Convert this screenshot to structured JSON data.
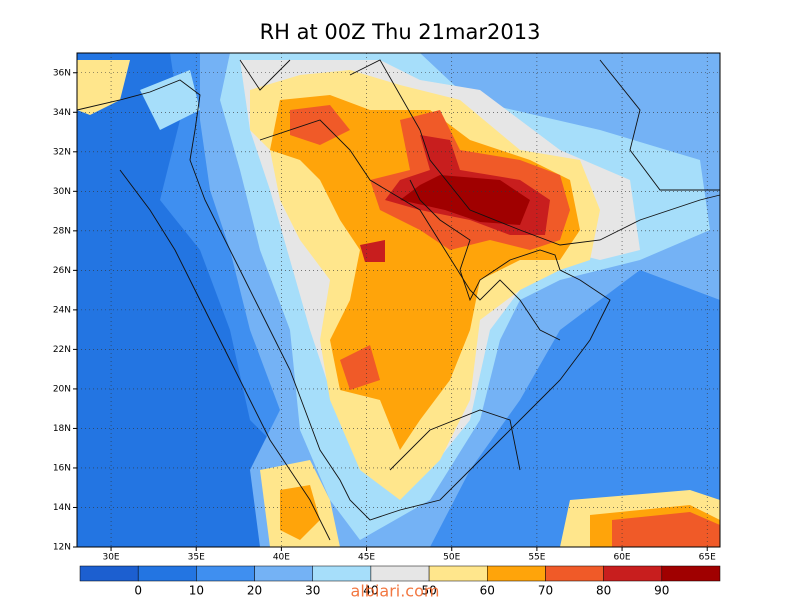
{
  "map": {
    "title": "RH at 00Z Thu 21mar2013",
    "xlim": [
      28,
      65.75
    ],
    "xticks": [
      {
        "value": 30,
        "label": "30E"
      },
      {
        "value": 35,
        "label": "35E"
      },
      {
        "value": 40,
        "label": "40E"
      },
      {
        "value": 45,
        "label": "45E"
      },
      {
        "value": 50,
        "label": "50E"
      },
      {
        "value": 55,
        "label": "55E"
      },
      {
        "value": 60,
        "label": "60E"
      },
      {
        "value": 65,
        "label": "65E"
      }
    ],
    "ylim": [
      12,
      37
    ],
    "yticks": [
      {
        "value": 12,
        "label": "12N"
      },
      {
        "value": 14,
        "label": "14N"
      },
      {
        "value": 16,
        "label": "16N"
      },
      {
        "value": 18,
        "label": "18N"
      },
      {
        "value": 20,
        "label": "20N"
      },
      {
        "value": 22,
        "label": "22N"
      },
      {
        "value": 24,
        "label": "24N"
      },
      {
        "value": 26,
        "label": "26N"
      },
      {
        "value": 28,
        "label": "28N"
      },
      {
        "value": 30,
        "label": "30N"
      },
      {
        "value": 32,
        "label": "32N"
      },
      {
        "value": 34,
        "label": "34N"
      },
      {
        "value": 36,
        "label": "36N"
      }
    ],
    "grid": true,
    "colorbar": {
      "clim": [
        -10,
        100
      ],
      "ticks": [
        0,
        10,
        20,
        30,
        40,
        50,
        60,
        70,
        80,
        90
      ],
      "colors": [
        "#1c5fd0",
        "#2375e2",
        "#3f8ff0",
        "#74b2f5",
        "#a6defa",
        "#e6e6e6",
        "#ffe68c",
        "#ffa40a",
        "#f05a28",
        "#c81e1e",
        "#a00000"
      ]
    },
    "watermark": "albiari.com"
  }
}
